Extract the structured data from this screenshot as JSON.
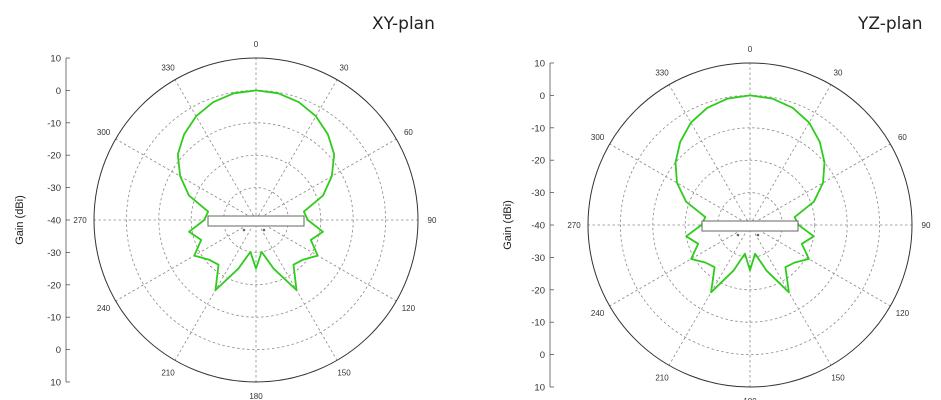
{
  "colors": {
    "pattern": "#2ecc1b",
    "grid": "#8a8a8a",
    "frame": "#333333"
  },
  "chart_data": [
    {
      "type": "polar-line",
      "title": "XY-plan",
      "ylabel": "Gain (dBi)",
      "radial_range": [
        -40,
        10
      ],
      "radial_axis_tick_labels": [
        "10",
        "0",
        "-10",
        "-20",
        "-30",
        "-40",
        "-30",
        "-20",
        "-10",
        "0",
        "10"
      ],
      "angle_tick_labels": [
        "0",
        "30",
        "60",
        "90",
        "120",
        "150",
        "180",
        "210",
        "240",
        "270",
        "300",
        "330"
      ],
      "grid": true,
      "series": [
        {
          "angles_deg": [
            0,
            10,
            20,
            30,
            40,
            50,
            60,
            70,
            80,
            90,
            100,
            110,
            120,
            130,
            140,
            150,
            160,
            170,
            180,
            190,
            200,
            210,
            220,
            230,
            240,
            250,
            260,
            270,
            280,
            290,
            300,
            310,
            320,
            330,
            340,
            350
          ],
          "gain_dbi": [
            0,
            -0.3,
            -1.3,
            -3,
            -5.5,
            -8.5,
            -13,
            -18,
            -25,
            -24,
            -19,
            -22,
            -18,
            -21,
            -22,
            -15,
            -24,
            -30,
            -25,
            -30,
            -24,
            -15,
            -22,
            -21,
            -18,
            -22,
            -19,
            -24,
            -25,
            -18,
            -13,
            -8.5,
            -5.5,
            -3,
            -1.3,
            -0.3
          ]
        }
      ]
    },
    {
      "type": "polar-line",
      "title": "YZ-plan",
      "ylabel": "Gain (dBi)",
      "radial_range": [
        -40,
        10
      ],
      "radial_axis_tick_labels": [
        "10",
        "0",
        "-10",
        "-20",
        "-30",
        "-40",
        "-30",
        "-20",
        "-10",
        "0",
        "10"
      ],
      "angle_tick_labels": [
        "0",
        "30",
        "60",
        "90",
        "120",
        "150",
        "180",
        "210",
        "240",
        "270",
        "300",
        "330"
      ],
      "grid": true,
      "series": [
        {
          "angles_deg": [
            0,
            10,
            20,
            30,
            40,
            50,
            60,
            70,
            80,
            90,
            100,
            110,
            120,
            130,
            140,
            150,
            160,
            170,
            180,
            190,
            200,
            210,
            220,
            230,
            240,
            250,
            260,
            270,
            280,
            290,
            300,
            310,
            320,
            330,
            340,
            350
          ],
          "gain_dbi": [
            0,
            -0.4,
            -1.5,
            -3.5,
            -6.5,
            -10,
            -14,
            -19,
            -26,
            -25,
            -20,
            -23,
            -19,
            -22,
            -23,
            -16,
            -25,
            -31,
            -26,
            -31,
            -25,
            -16,
            -23,
            -22,
            -19,
            -23,
            -20,
            -25,
            -26,
            -19,
            -14,
            -10,
            -6.5,
            -3.5,
            -1.5,
            -0.4
          ]
        }
      ]
    }
  ]
}
